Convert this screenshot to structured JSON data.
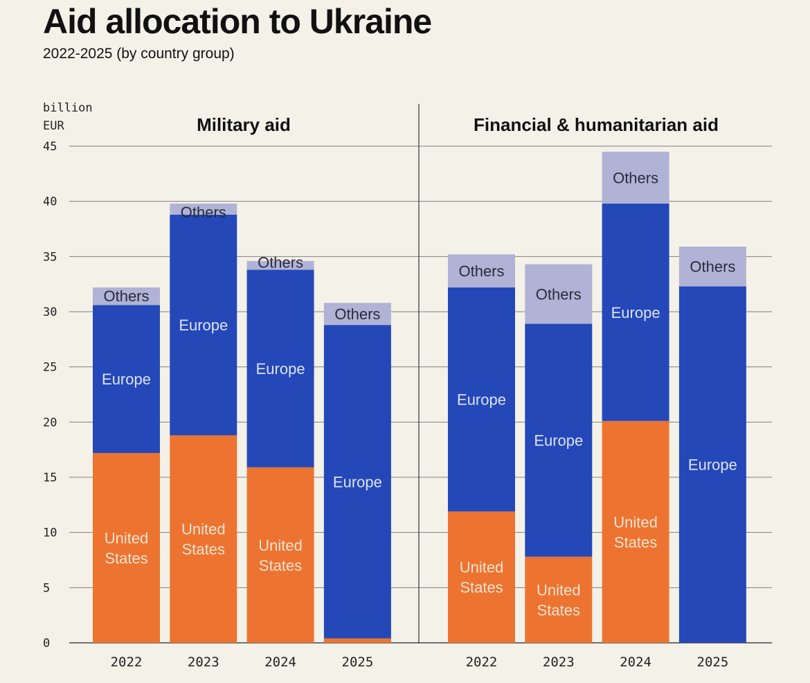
{
  "header": {
    "title": "Aid allocation to Ukraine",
    "subtitle": "2022-2025 (by country group)"
  },
  "chart_data": {
    "type": "bar",
    "stacked": true,
    "ylabel": "billion EUR",
    "ylabel_lines": [
      "billion",
      "EUR"
    ],
    "ylim": [
      0,
      45
    ],
    "yticks": [
      0,
      5,
      10,
      15,
      20,
      25,
      30,
      35,
      40,
      45
    ],
    "grid": true,
    "colors": {
      "United States": "#ec7430",
      "Europe": "#2448b8",
      "Others": "#b0b3d6",
      "background": "#f4f1e8",
      "grid": "#7f7f7f"
    },
    "label_colors": {
      "United States": "#f6e2d2",
      "Europe": "#dde2f5",
      "Others": "#2a2a3a"
    },
    "segment_labels": {
      "United States": [
        "United",
        "States"
      ],
      "Europe": [
        "Europe"
      ],
      "Others": [
        "Others"
      ]
    },
    "panels": [
      {
        "title": "Military aid",
        "categories": [
          "2022",
          "2023",
          "2024",
          "2025"
        ],
        "series": [
          {
            "name": "United States",
            "values": [
              17.2,
              18.8,
              15.9,
              0.4
            ]
          },
          {
            "name": "Europe",
            "values": [
              13.4,
              20.0,
              17.9,
              28.4
            ]
          },
          {
            "name": "Others",
            "values": [
              1.6,
              1.0,
              0.8,
              2.0
            ]
          }
        ],
        "labels_shown": [
          [
            true,
            true,
            true
          ],
          [
            true,
            true,
            true
          ],
          [
            true,
            true,
            true
          ],
          [
            false,
            true,
            true
          ]
        ]
      },
      {
        "title": "Financial & humanitarian aid",
        "categories": [
          "2022",
          "2023",
          "2024",
          "2025"
        ],
        "series": [
          {
            "name": "United States",
            "values": [
              11.9,
              7.8,
              20.1,
              0
            ]
          },
          {
            "name": "Europe",
            "values": [
              20.3,
              21.1,
              19.7,
              32.3
            ]
          },
          {
            "name": "Others",
            "values": [
              3.0,
              5.4,
              4.7,
              3.6
            ]
          }
        ],
        "labels_shown": [
          [
            true,
            true,
            true
          ],
          [
            true,
            true,
            true
          ],
          [
            true,
            true,
            true
          ],
          [
            false,
            true,
            true
          ]
        ]
      }
    ]
  }
}
